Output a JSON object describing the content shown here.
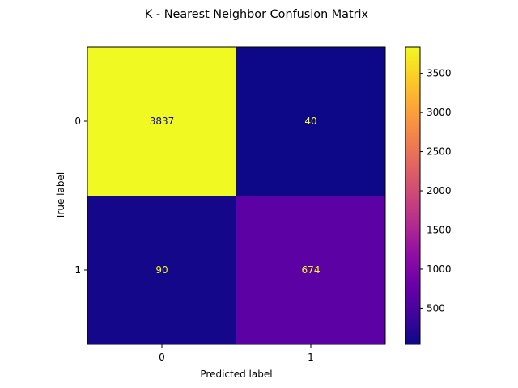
{
  "chart_data": {
    "type": "heatmap",
    "title": "K - Nearest Neighbor Confusion Matrix",
    "xlabel": "Predicted label",
    "ylabel": "True label",
    "x_categories": [
      "0",
      "1"
    ],
    "y_categories": [
      "0",
      "1"
    ],
    "matrix": [
      [
        3837,
        40
      ],
      [
        90,
        674
      ]
    ],
    "colormap": "plasma",
    "colorbar": {
      "range": [
        40,
        3837
      ],
      "ticks": [
        500,
        1000,
        1500,
        2000,
        2500,
        3000,
        3500
      ],
      "tick_labels": [
        "500",
        "1000",
        "1500",
        "2000",
        "2500",
        "3000",
        "3500"
      ]
    },
    "grid": false
  }
}
